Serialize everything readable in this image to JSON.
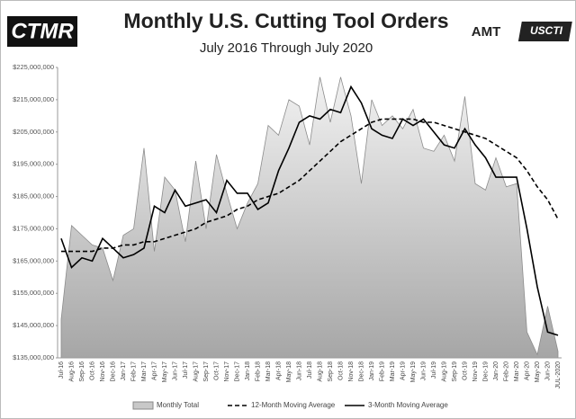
{
  "logos": {
    "left": "CTMR",
    "amt": "AMT",
    "uscti": "USCTI"
  },
  "chart_data": {
    "type": "line",
    "title": "Monthly U.S. Cutting Tool Orders",
    "subtitle": "July 2016 Through July 2020",
    "categories": [
      "Jul-16",
      "Aug-16",
      "Sep-16",
      "Oct-16",
      "Nov-16",
      "Dec-16",
      "Jan-17",
      "Feb-17",
      "Mar-17",
      "Apr-17",
      "May-17",
      "Jun-17",
      "Jul-17",
      "Aug-17",
      "Sep-17",
      "Oct-17",
      "Nov-17",
      "Dec-17",
      "Jan-18",
      "Feb-18",
      "Mar-18",
      "Apr-18",
      "May-18",
      "Jun-18",
      "Jul-18",
      "Aug-18",
      "Sep-18",
      "Oct-18",
      "Nov-18",
      "Dec-18",
      "Jan-19",
      "Feb-19",
      "Mar-19",
      "Apr-19",
      "May-19",
      "Jun-19",
      "Jul-19",
      "Aug-19",
      "Sep-19",
      "Oct-19",
      "Nov-19",
      "Dec-19",
      "Jan-20",
      "Feb-20",
      "Mar-20",
      "Apr-20",
      "May-20",
      "Jun-20",
      "JUL-2020"
    ],
    "series": [
      {
        "name": "Monthly Total",
        "kind": "area",
        "color": "#a6a6a6",
        "values": [
          147000000,
          176000000,
          173000000,
          170000000,
          169000000,
          159000000,
          173000000,
          175000000,
          200000000,
          168000000,
          191000000,
          187000000,
          171000000,
          196000000,
          175000000,
          198000000,
          186000000,
          175000000,
          183000000,
          189000000,
          207000000,
          204000000,
          215000000,
          213000000,
          201000000,
          222000000,
          208000000,
          222000000,
          210000000,
          189000000,
          215000000,
          207000000,
          210000000,
          206000000,
          212000000,
          200000000,
          199000000,
          204000000,
          196000000,
          216000000,
          189000000,
          187000000,
          197000000,
          188000000,
          189000000,
          143000000,
          136000000,
          151000000,
          137000000
        ]
      },
      {
        "name": "12-Month Moving Average",
        "kind": "dashed",
        "color": "#000000",
        "values": [
          168000000,
          168000000,
          168000000,
          168000000,
          169000000,
          169000000,
          170000000,
          170000000,
          171000000,
          171000000,
          172000000,
          173000000,
          174000000,
          175000000,
          177000000,
          178000000,
          179000000,
          181000000,
          182000000,
          184000000,
          185000000,
          186000000,
          188000000,
          190000000,
          193000000,
          196000000,
          199000000,
          202000000,
          204000000,
          206000000,
          208000000,
          209000000,
          209000000,
          209000000,
          209000000,
          208000000,
          208000000,
          207000000,
          206000000,
          205000000,
          204000000,
          203000000,
          201000000,
          199000000,
          197000000,
          193000000,
          188000000,
          184000000,
          178000000
        ]
      },
      {
        "name": "3-Month Moving Average",
        "kind": "solid",
        "color": "#000000",
        "values": [
          172000000,
          163000000,
          166000000,
          165000000,
          172000000,
          169000000,
          166000000,
          167000000,
          169000000,
          182000000,
          180000000,
          187000000,
          182000000,
          183000000,
          184000000,
          180000000,
          190000000,
          186000000,
          186000000,
          181000000,
          183000000,
          193000000,
          200000000,
          208000000,
          210000000,
          209000000,
          212000000,
          211000000,
          219000000,
          214000000,
          206000000,
          204000000,
          203000000,
          209000000,
          207000000,
          209000000,
          205000000,
          201000000,
          200000000,
          206000000,
          201000000,
          197000000,
          191000000,
          191000000,
          191000000,
          175000000,
          157000000,
          143000000,
          142000000
        ]
      }
    ],
    "ylim": [
      135000000,
      225000000
    ],
    "yticks": [
      {
        "value": 135000000,
        "label": "$135,000,000"
      },
      {
        "value": 145000000,
        "label": "$145,000,000"
      },
      {
        "value": 155000000,
        "label": "$155,000,000"
      },
      {
        "value": 165000000,
        "label": "$165,000,000"
      },
      {
        "value": 175000000,
        "label": "$175,000,000"
      },
      {
        "value": 185000000,
        "label": "$185,000,000"
      },
      {
        "value": 195000000,
        "label": "$195,000,000"
      },
      {
        "value": 205000000,
        "label": "$205,000,000"
      },
      {
        "value": 215000000,
        "label": "$215,000,000"
      },
      {
        "value": 225000000,
        "label": "$225,000,000"
      }
    ],
    "grid": false,
    "legend": "bottom"
  }
}
